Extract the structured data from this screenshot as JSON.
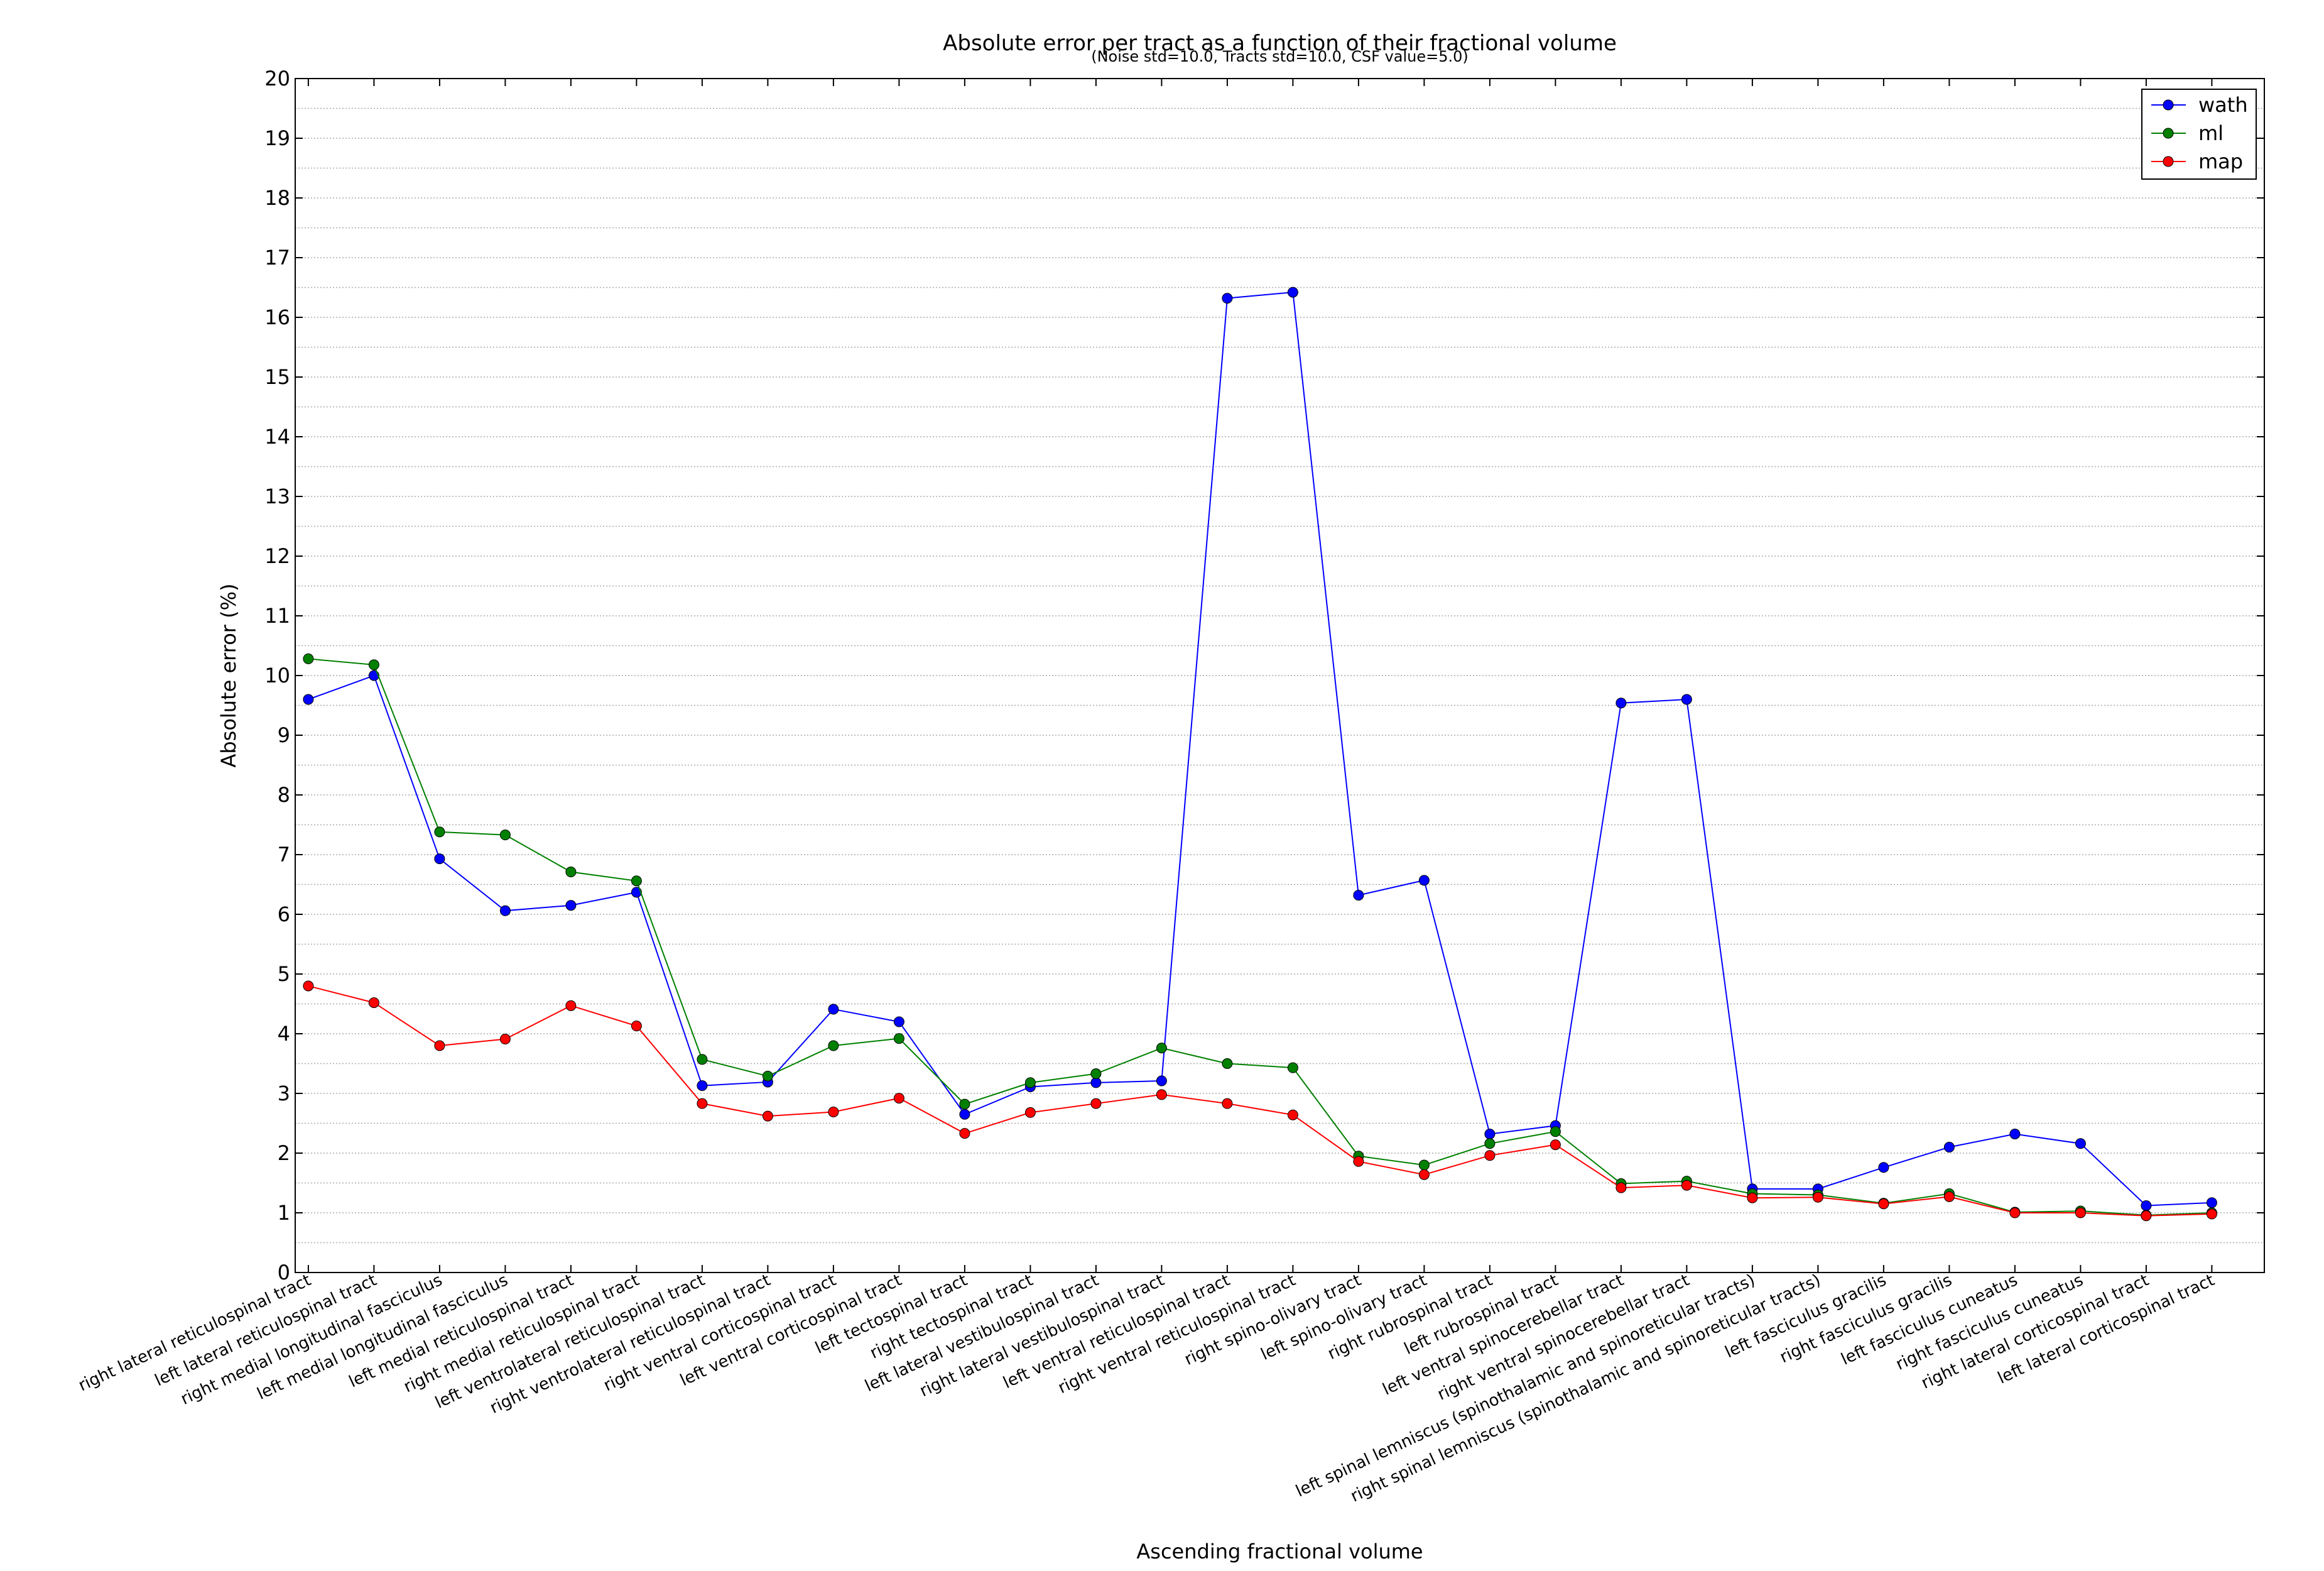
{
  "chart_data": {
    "type": "line",
    "title": "Absolute error per tract as a function of their fractional volume",
    "subtitle": "(Noise std=10.0, Tracts std=10.0, CSF value=5.0)",
    "xlabel": "Ascending fractional volume",
    "ylabel": "Absolute error (%)",
    "ylim": [
      0,
      20
    ],
    "yticks": [
      0,
      1,
      2,
      3,
      4,
      5,
      6,
      7,
      8,
      9,
      10,
      11,
      12,
      13,
      14,
      15,
      16,
      17,
      18,
      19,
      20
    ],
    "grid": true,
    "legend_position": "top-right",
    "categories": [
      "right lateral reticulospinal tract",
      "left lateral reticulospinal tract",
      "right medial longitudinal fasciculus",
      "left medial longitudinal fasciculus",
      "left medial reticulospinal tract",
      "right medial reticulospinal tract",
      "left ventrolateral reticulospinal tract",
      "right ventrolateral reticulospinal tract",
      "right ventral corticospinal tract",
      "left ventral corticospinal tract",
      "left tectospinal tract",
      "right tectospinal tract",
      "left lateral vestibulospinal tract",
      "right lateral vestibulospinal tract",
      "left ventral reticulospinal tract",
      "right ventral reticulospinal tract",
      "right spino-olivary tract",
      "left spino-olivary tract",
      "right rubrospinal tract",
      "left rubrospinal tract",
      "left ventral spinocerebellar tract",
      "right ventral spinocerebellar tract",
      "left spinal lemniscus (spinothalamic and spinoreticular tracts)",
      "right spinal lemniscus (spinothalamic and spinoreticular tracts)",
      "left fasciculus gracilis",
      "right fasciculus gracilis",
      "left fasciculus cuneatus",
      "right fasciculus cuneatus",
      "right lateral corticospinal tract",
      "left lateral corticospinal tract"
    ],
    "series": [
      {
        "name": "wath",
        "color": "#0000ff",
        "values": [
          9.6,
          10.0,
          6.93,
          6.06,
          6.15,
          6.37,
          3.13,
          3.19,
          4.41,
          4.2,
          2.65,
          3.11,
          3.18,
          3.21,
          16.32,
          16.42,
          6.32,
          6.57,
          2.32,
          2.46,
          9.54,
          9.6,
          1.4,
          1.4,
          1.76,
          2.1,
          2.32,
          2.16,
          1.12,
          1.17
        ]
      },
      {
        "name": "ml",
        "color": "#008000",
        "values": [
          10.28,
          10.18,
          7.38,
          7.33,
          6.71,
          6.56,
          3.57,
          3.29,
          3.8,
          3.92,
          2.82,
          3.18,
          3.33,
          3.76,
          3.5,
          3.43,
          1.95,
          1.8,
          2.16,
          2.36,
          1.49,
          1.53,
          1.32,
          1.3,
          1.16,
          1.32,
          1.01,
          1.03,
          0.96,
          1.0
        ]
      },
      {
        "name": "map",
        "color": "#ff0000",
        "values": [
          4.8,
          4.52,
          3.8,
          3.91,
          4.47,
          4.13,
          2.83,
          2.62,
          2.69,
          2.92,
          2.33,
          2.68,
          2.83,
          2.98,
          2.83,
          2.64,
          1.86,
          1.64,
          1.96,
          2.14,
          1.42,
          1.46,
          1.25,
          1.26,
          1.15,
          1.27,
          1.0,
          1.0,
          0.95,
          0.98
        ]
      }
    ]
  }
}
